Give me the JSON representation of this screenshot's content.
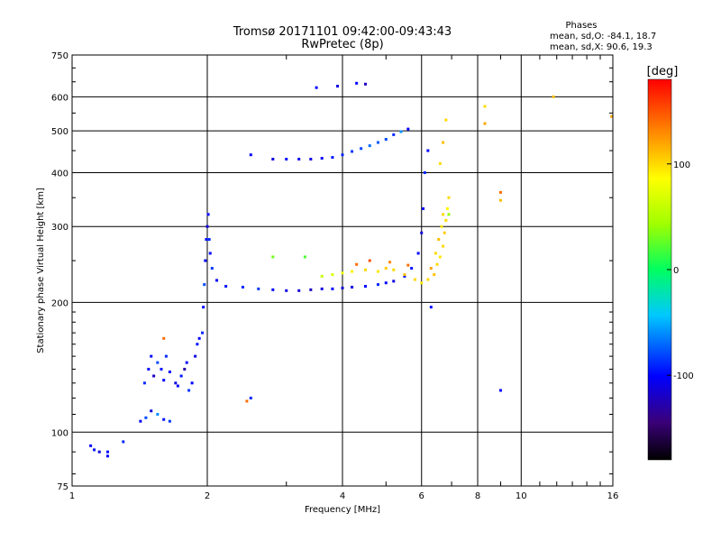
{
  "chart_data": {
    "type": "scatter",
    "title": "Tromsø 20171101 09:42:00-09:43:43",
    "subtitle": "RwPretec (8p)",
    "xlabel": "Frequency [MHz]",
    "ylabel": "Stationary phase Virtual Height [km]",
    "x_scale": "log",
    "y_scale": "log",
    "xlim": [
      1,
      16
    ],
    "ylim": [
      75,
      750
    ],
    "xticks": [
      1,
      2,
      4,
      6,
      8,
      10,
      16
    ],
    "yticks": [
      75,
      100,
      200,
      300,
      400,
      500,
      600,
      750
    ],
    "grid": true,
    "stats": {
      "heading": "Phases",
      "line_o": "mean, sd,O: -84.1, 18.7",
      "line_x": "mean, sd,X:  90.6, 19.3"
    },
    "colorbar": {
      "label": "[deg]",
      "range": [
        -180,
        180
      ],
      "ticks": [
        100,
        0,
        -100
      ]
    },
    "series": [
      {
        "points": [
          [
            1.1,
            93,
            -100
          ],
          [
            1.12,
            91,
            -95
          ],
          [
            1.15,
            90,
            -110
          ],
          [
            1.2,
            88,
            -100
          ],
          [
            1.3,
            95,
            -90
          ],
          [
            1.42,
            106,
            -100
          ],
          [
            1.46,
            108,
            -80
          ],
          [
            1.5,
            112,
            -110
          ],
          [
            1.55,
            110,
            -60
          ],
          [
            1.6,
            107,
            -95
          ],
          [
            1.65,
            106,
            -85
          ],
          [
            1.45,
            130,
            -90
          ],
          [
            1.48,
            140,
            -100
          ],
          [
            1.5,
            150,
            -100
          ],
          [
            1.52,
            135,
            -120
          ],
          [
            1.55,
            145,
            -80
          ],
          [
            1.58,
            140,
            -95
          ],
          [
            1.6,
            132,
            -100
          ],
          [
            1.62,
            150,
            -90
          ],
          [
            1.65,
            138,
            -100
          ],
          [
            1.7,
            130,
            -110
          ],
          [
            1.72,
            128,
            -100
          ],
          [
            1.75,
            135,
            -95
          ],
          [
            1.78,
            140,
            -130
          ],
          [
            1.8,
            145,
            -100
          ],
          [
            1.82,
            125,
            -85
          ],
          [
            1.85,
            130,
            -100
          ],
          [
            1.88,
            150,
            -110
          ],
          [
            1.9,
            160,
            -95
          ],
          [
            1.92,
            165,
            -100
          ],
          [
            1.95,
            170,
            -90
          ],
          [
            1.96,
            195,
            -100
          ],
          [
            1.97,
            220,
            -80
          ],
          [
            1.98,
            250,
            -100
          ],
          [
            1.99,
            280,
            -95
          ],
          [
            2.0,
            300,
            -110
          ],
          [
            2.01,
            320,
            -100
          ],
          [
            2.02,
            280,
            -90
          ],
          [
            2.03,
            260,
            -100
          ],
          [
            2.05,
            240,
            -85
          ],
          [
            2.1,
            225,
            -100
          ],
          [
            2.2,
            218,
            -95
          ],
          [
            2.4,
            217,
            -90
          ],
          [
            2.6,
            215,
            -85
          ],
          [
            2.8,
            214,
            -100
          ],
          [
            3.0,
            213,
            -110
          ],
          [
            3.2,
            213,
            -115
          ],
          [
            3.4,
            214,
            -120
          ],
          [
            3.6,
            215,
            -110
          ],
          [
            3.8,
            215,
            -100
          ],
          [
            4.0,
            216,
            -115
          ],
          [
            4.2,
            217,
            -110
          ],
          [
            4.5,
            218,
            -100
          ],
          [
            4.8,
            220,
            -90
          ],
          [
            5.0,
            222,
            -100
          ],
          [
            5.2,
            224,
            -110
          ],
          [
            5.5,
            230,
            -100
          ],
          [
            5.7,
            240,
            -95
          ],
          [
            5.9,
            260,
            -100
          ],
          [
            6.0,
            290,
            -110
          ],
          [
            6.05,
            330,
            -100
          ],
          [
            6.1,
            400,
            -90
          ],
          [
            6.2,
            450,
            -100
          ],
          [
            2.5,
            440,
            -100
          ],
          [
            2.8,
            430,
            -110
          ],
          [
            3.0,
            430,
            -100
          ],
          [
            3.2,
            430,
            -105
          ],
          [
            3.4,
            430,
            -110
          ],
          [
            3.6,
            432,
            -100
          ],
          [
            3.8,
            434,
            -95
          ],
          [
            4.0,
            440,
            -90
          ],
          [
            4.2,
            448,
            -85
          ],
          [
            4.4,
            455,
            -80
          ],
          [
            4.6,
            462,
            -70
          ],
          [
            4.8,
            470,
            -75
          ],
          [
            5.0,
            478,
            -80
          ],
          [
            5.2,
            490,
            -90
          ],
          [
            5.4,
            498,
            -60
          ],
          [
            5.6,
            505,
            -100
          ],
          [
            3.5,
            630,
            -100
          ],
          [
            3.9,
            635,
            -110
          ],
          [
            4.3,
            645,
            -100
          ],
          [
            4.5,
            642,
            -120
          ],
          [
            1.2,
            90,
            -100
          ],
          [
            2.5,
            120,
            -90
          ],
          [
            6.3,
            195,
            -100
          ],
          [
            9.0,
            125,
            -100
          ]
        ]
      },
      {
        "points": [
          [
            3.6,
            230,
            60
          ],
          [
            3.8,
            232,
            70
          ],
          [
            4.0,
            234,
            80
          ],
          [
            4.2,
            236,
            90
          ],
          [
            4.5,
            238,
            100
          ],
          [
            4.8,
            236,
            95
          ],
          [
            5.0,
            240,
            105
          ],
          [
            5.2,
            238,
            100
          ],
          [
            5.5,
            232,
            110
          ],
          [
            5.8,
            226,
            100
          ],
          [
            6.0,
            222,
            95
          ],
          [
            6.2,
            226,
            100
          ],
          [
            6.4,
            232,
            110
          ],
          [
            6.5,
            245,
            100
          ],
          [
            6.6,
            255,
            95
          ],
          [
            6.7,
            270,
            100
          ],
          [
            6.75,
            290,
            105
          ],
          [
            6.8,
            310,
            100
          ],
          [
            6.85,
            330,
            90
          ],
          [
            6.9,
            350,
            100
          ],
          [
            6.3,
            240,
            120
          ],
          [
            6.45,
            260,
            100
          ],
          [
            6.55,
            280,
            110
          ],
          [
            6.65,
            300,
            95
          ],
          [
            6.7,
            320,
            100
          ],
          [
            6.6,
            420,
            100
          ],
          [
            6.7,
            470,
            110
          ],
          [
            6.8,
            530,
            100
          ],
          [
            4.3,
            245,
            140
          ],
          [
            4.6,
            250,
            150
          ],
          [
            5.1,
            248,
            130
          ],
          [
            5.6,
            244,
            140
          ],
          [
            1.6,
            165,
            140
          ],
          [
            2.45,
            118,
            140
          ],
          [
            8.3,
            570,
            100
          ],
          [
            8.3,
            520,
            120
          ],
          [
            9.0,
            360,
            140
          ],
          [
            9.0,
            345,
            110
          ],
          [
            11.8,
            600,
            110
          ],
          [
            15.9,
            540,
            120
          ],
          [
            3.3,
            255,
            20
          ],
          [
            2.8,
            255,
            30
          ],
          [
            6.9,
            320,
            40
          ]
        ]
      }
    ]
  }
}
